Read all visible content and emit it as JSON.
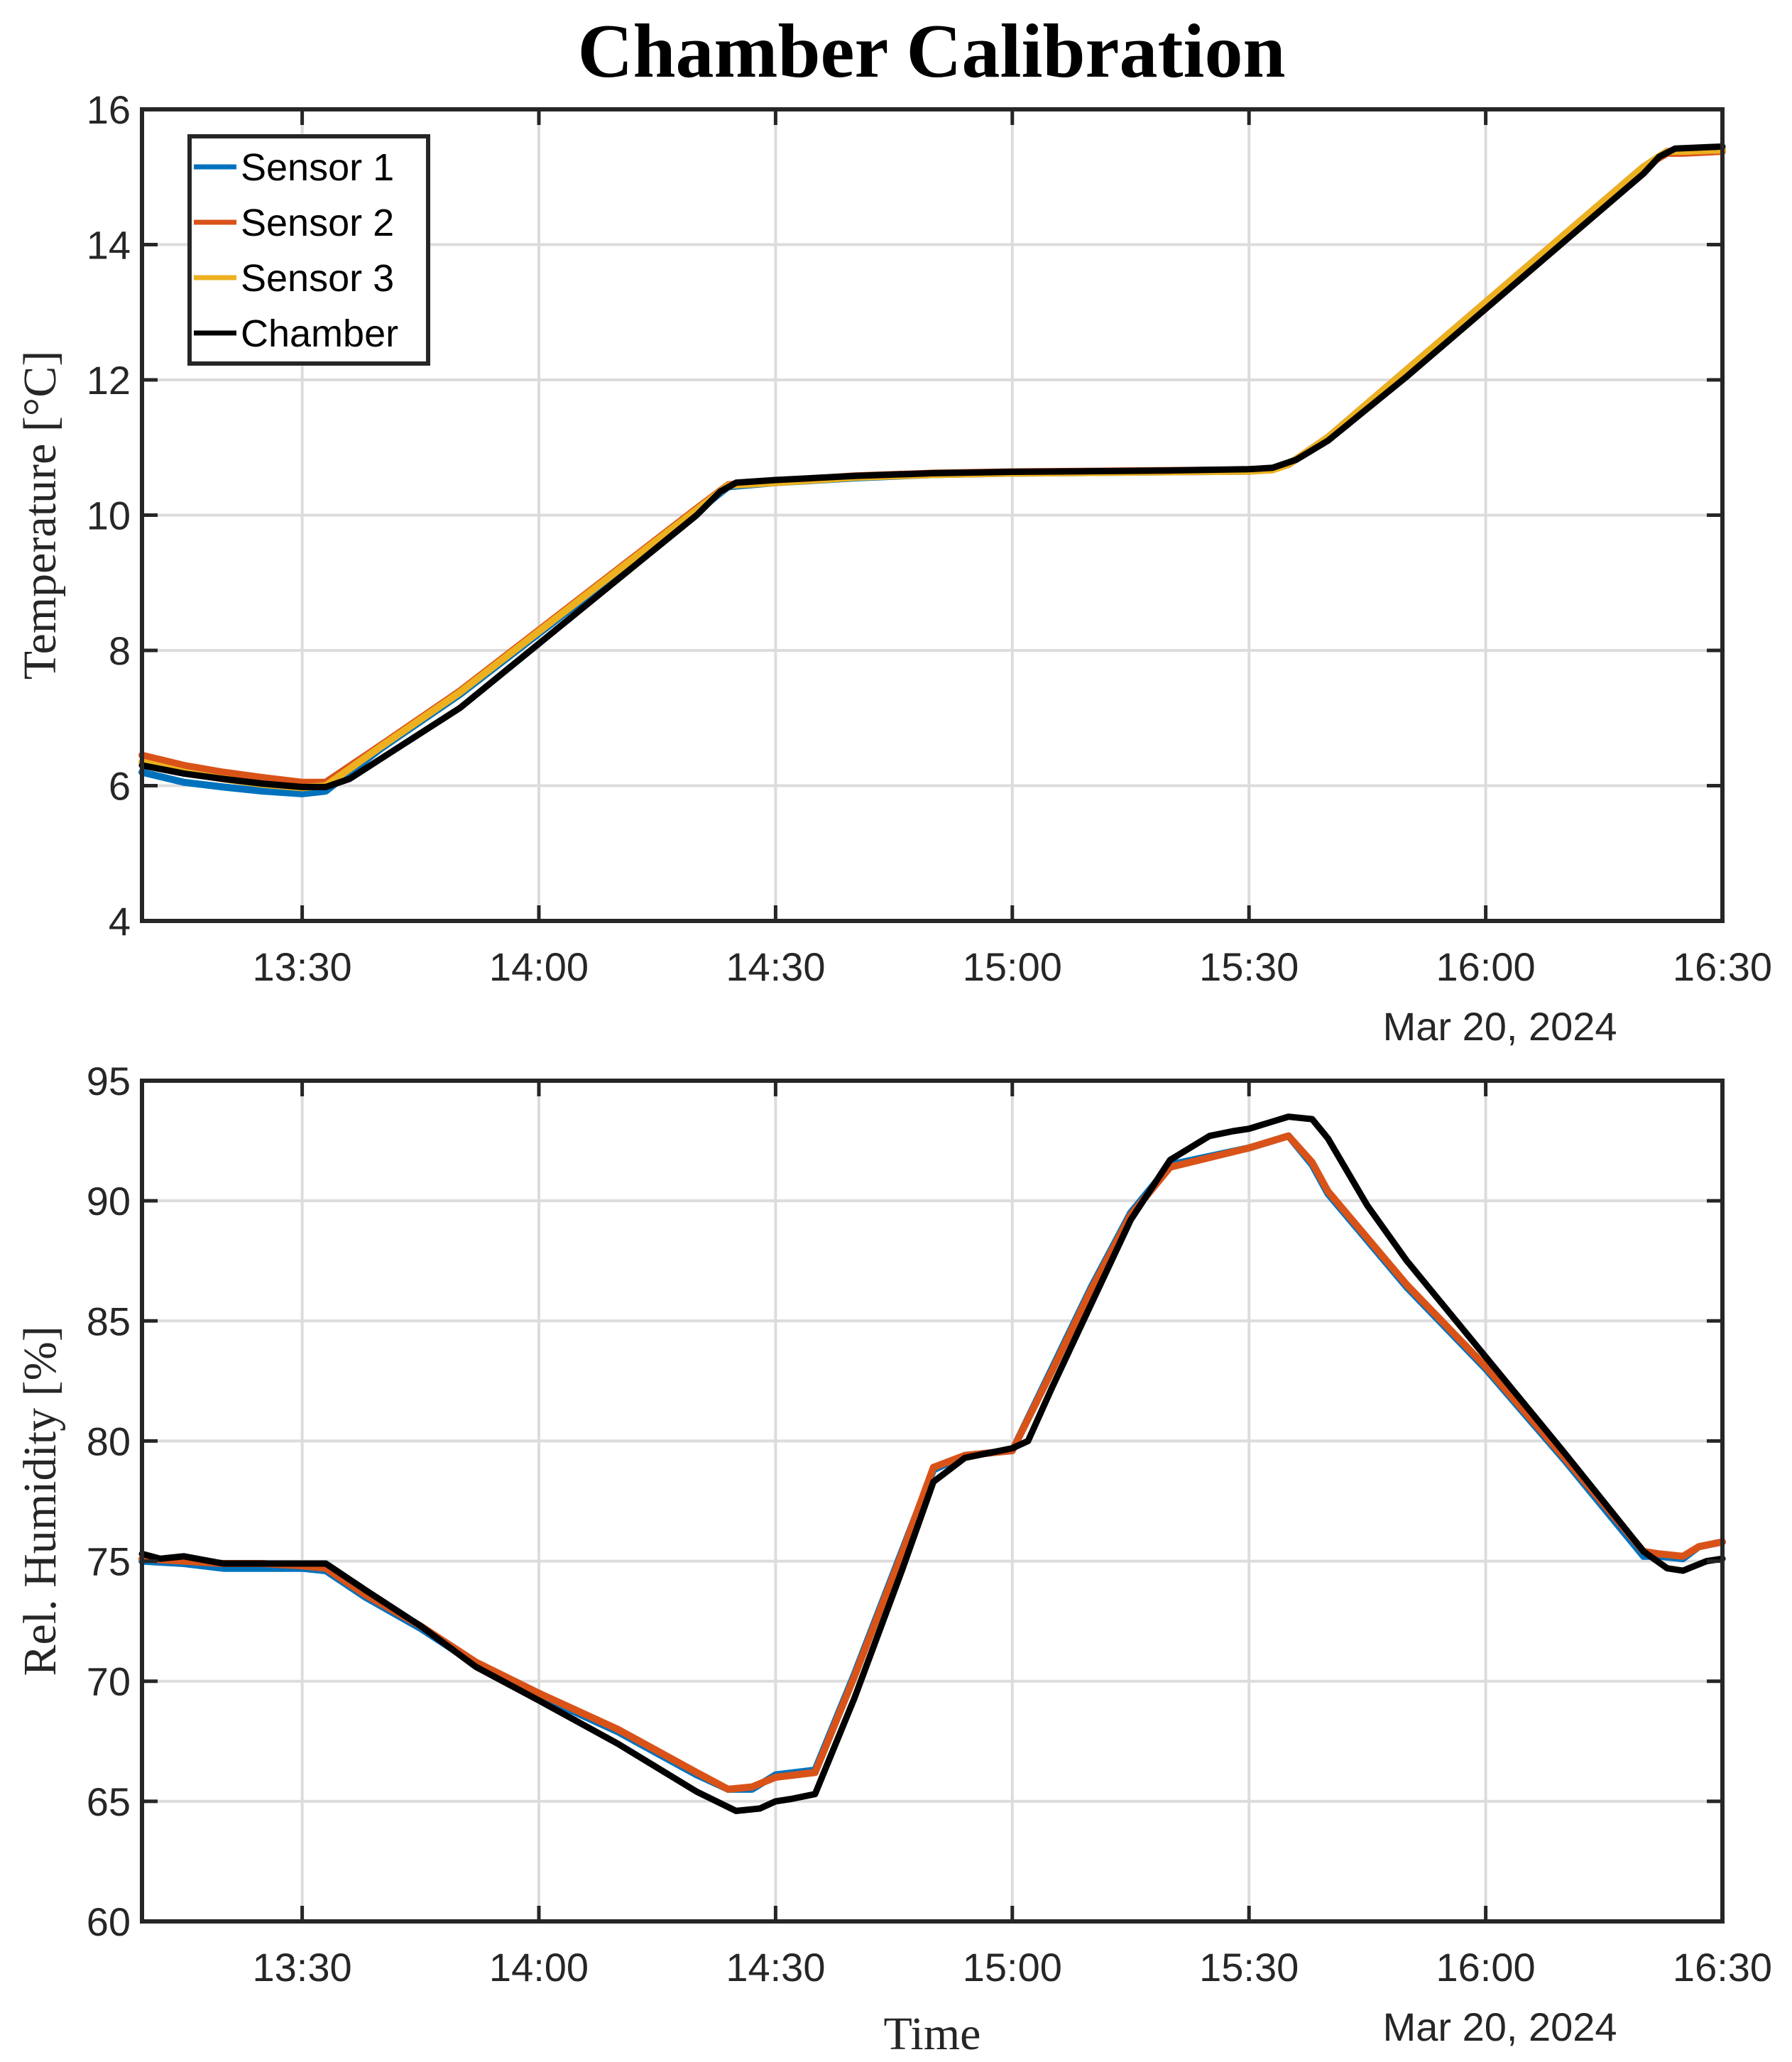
{
  "figure": {
    "title": "Chamber Calibration",
    "date_label": "Mar 20, 2024",
    "xlabel": "Time"
  },
  "legend": {
    "items": [
      {
        "label": "Sensor 1",
        "color": "#0072BD"
      },
      {
        "label": "Sensor 2",
        "color": "#D95319"
      },
      {
        "label": "Sensor 3",
        "color": "#EDB120"
      },
      {
        "label": "Chamber",
        "color": "#000000"
      }
    ]
  },
  "chart_data": [
    {
      "type": "line",
      "title": "Chamber Calibration",
      "xlabel": "",
      "ylabel": "Temperature [°C]",
      "x_unit": "minutes after 13:00 on Mar 20, 2024",
      "xlim": [
        9.7,
        210
      ],
      "x_ticks": [
        30,
        60,
        90,
        120,
        150,
        180,
        210
      ],
      "x_tick_labels": [
        "13:30",
        "14:00",
        "14:30",
        "15:00",
        "15:30",
        "16:00",
        "16:30"
      ],
      "x_date_label": "Mar 20, 2024",
      "ylim": [
        4,
        16
      ],
      "y_ticks": [
        4,
        6,
        8,
        10,
        12,
        14,
        16
      ],
      "grid": true,
      "legend_position": "upper left",
      "series": [
        {
          "name": "Sensor 1",
          "color": "#0072BD",
          "x": [
            9.7,
            15,
            20,
            25,
            30,
            33,
            40,
            50,
            60,
            70,
            80,
            84,
            90,
            100,
            110,
            120,
            130,
            140,
            150,
            153,
            155,
            160,
            170,
            180,
            190,
            200,
            203,
            205,
            210
          ],
          "y": [
            6.2,
            6.05,
            5.98,
            5.92,
            5.88,
            5.92,
            6.55,
            7.35,
            8.25,
            9.15,
            10.05,
            10.42,
            10.48,
            10.55,
            10.6,
            10.62,
            10.63,
            10.64,
            10.65,
            10.68,
            10.75,
            11.15,
            12.15,
            13.15,
            14.15,
            15.15,
            15.38,
            15.38,
            15.4
          ]
        },
        {
          "name": "Sensor 2",
          "color": "#D95319",
          "x": [
            9.7,
            15,
            20,
            25,
            30,
            33,
            40,
            50,
            60,
            70,
            80,
            84,
            90,
            100,
            110,
            120,
            130,
            140,
            150,
            153,
            155,
            160,
            170,
            180,
            190,
            200,
            203,
            205,
            210
          ],
          "y": [
            6.45,
            6.3,
            6.2,
            6.12,
            6.05,
            6.05,
            6.6,
            7.4,
            8.3,
            9.2,
            10.1,
            10.45,
            10.5,
            10.58,
            10.62,
            10.64,
            10.65,
            10.66,
            10.67,
            10.68,
            10.75,
            11.15,
            12.15,
            13.15,
            14.15,
            15.15,
            15.35,
            15.35,
            15.38
          ]
        },
        {
          "name": "Sensor 3",
          "color": "#EDB120",
          "x": [
            9.7,
            15,
            20,
            25,
            30,
            33,
            40,
            50,
            60,
            70,
            80,
            84,
            90,
            100,
            110,
            120,
            130,
            140,
            150,
            153,
            155,
            160,
            170,
            180,
            190,
            200,
            203,
            205,
            210
          ],
          "y": [
            6.35,
            6.2,
            6.1,
            6.02,
            5.97,
            6.0,
            6.58,
            7.38,
            8.28,
            9.18,
            10.08,
            10.44,
            10.48,
            10.56,
            10.6,
            10.62,
            10.63,
            10.64,
            10.65,
            10.67,
            10.75,
            11.15,
            12.15,
            13.15,
            14.15,
            15.15,
            15.38,
            15.38,
            15.4
          ]
        },
        {
          "name": "Chamber",
          "color": "#000000",
          "x": [
            9.7,
            15,
            20,
            25,
            30,
            33,
            36,
            40,
            50,
            60,
            70,
            80,
            83,
            85,
            90,
            100,
            110,
            120,
            130,
            140,
            150,
            153,
            156,
            160,
            170,
            180,
            190,
            200,
            202,
            204,
            210
          ],
          "y": [
            6.3,
            6.18,
            6.1,
            6.03,
            5.98,
            5.98,
            6.1,
            6.4,
            7.15,
            8.1,
            9.05,
            10.0,
            10.35,
            10.48,
            10.52,
            10.58,
            10.62,
            10.64,
            10.65,
            10.66,
            10.68,
            10.7,
            10.82,
            11.1,
            12.05,
            13.05,
            14.05,
            15.05,
            15.3,
            15.42,
            15.45
          ]
        }
      ]
    },
    {
      "type": "line",
      "title": "",
      "xlabel": "Time",
      "ylabel": "Rel. Humidity [%]",
      "x_unit": "minutes after 13:00 on Mar 20, 2024",
      "xlim": [
        9.7,
        210
      ],
      "x_ticks": [
        30,
        60,
        90,
        120,
        150,
        180,
        210
      ],
      "x_tick_labels": [
        "13:30",
        "14:00",
        "14:30",
        "15:00",
        "15:30",
        "16:00",
        "16:30"
      ],
      "x_date_label": "Mar 20, 2024",
      "ylim": [
        60,
        95
      ],
      "y_ticks": [
        60,
        65,
        70,
        75,
        80,
        85,
        90,
        95
      ],
      "grid": true,
      "series": [
        {
          "name": "Sensor 1",
          "color": "#0072BD",
          "x": [
            9.7,
            15,
            20,
            25,
            30,
            33,
            38,
            45,
            52,
            60,
            70,
            80,
            84,
            87,
            90,
            95,
            100,
            106,
            110,
            114,
            120,
            125,
            130,
            135,
            140,
            150,
            155,
            158,
            160,
            170,
            180,
            190,
            200,
            202,
            205,
            207,
            210
          ],
          "y": [
            75.0,
            74.9,
            74.7,
            74.7,
            74.7,
            74.6,
            73.5,
            72.2,
            70.7,
            69.4,
            67.9,
            66.1,
            65.5,
            65.5,
            66.1,
            66.3,
            70.3,
            75.4,
            78.8,
            79.4,
            79.6,
            83.0,
            86.4,
            89.5,
            91.5,
            92.2,
            92.7,
            91.5,
            90.3,
            86.4,
            83.0,
            79.2,
            75.2,
            75.2,
            75.1,
            75.6,
            75.8
          ]
        },
        {
          "name": "Sensor 2",
          "color": "#D95319",
          "x": [
            9.7,
            15,
            20,
            25,
            30,
            33,
            38,
            45,
            52,
            60,
            70,
            80,
            84,
            87,
            90,
            95,
            100,
            106,
            110,
            114,
            120,
            125,
            130,
            135,
            140,
            150,
            155,
            158,
            160,
            170,
            180,
            190,
            200,
            202,
            205,
            207,
            210
          ],
          "y": [
            75.1,
            75.0,
            74.9,
            74.9,
            74.8,
            74.7,
            73.6,
            72.3,
            70.8,
            69.5,
            68.0,
            66.2,
            65.5,
            65.6,
            66.0,
            66.2,
            70.2,
            75.3,
            78.9,
            79.4,
            79.6,
            82.9,
            86.3,
            89.4,
            91.4,
            92.2,
            92.7,
            91.6,
            90.4,
            86.5,
            83.1,
            79.3,
            75.4,
            75.3,
            75.2,
            75.6,
            75.8
          ]
        },
        {
          "name": "Chamber",
          "color": "#000000",
          "x": [
            9.7,
            12,
            15,
            20,
            25,
            30,
            33,
            38,
            45,
            52,
            60,
            70,
            80,
            85,
            88,
            90,
            92,
            95,
            100,
            106,
            110,
            114,
            120,
            122,
            125,
            130,
            135,
            140,
            145,
            148,
            150,
            153,
            155,
            158,
            160,
            165,
            170,
            180,
            190,
            200,
            203,
            205,
            208,
            210
          ],
          "y": [
            75.3,
            75.1,
            75.2,
            74.9,
            74.9,
            74.9,
            74.9,
            73.8,
            72.3,
            70.6,
            69.2,
            67.4,
            65.4,
            64.6,
            64.7,
            65.0,
            65.1,
            65.3,
            69.3,
            74.6,
            78.3,
            79.3,
            79.7,
            80.0,
            82.2,
            85.7,
            89.2,
            91.7,
            92.7,
            92.9,
            93.0,
            93.3,
            93.5,
            93.4,
            92.6,
            89.8,
            87.5,
            83.5,
            79.5,
            75.4,
            74.7,
            74.6,
            75.0,
            75.1
          ]
        }
      ]
    }
  ]
}
